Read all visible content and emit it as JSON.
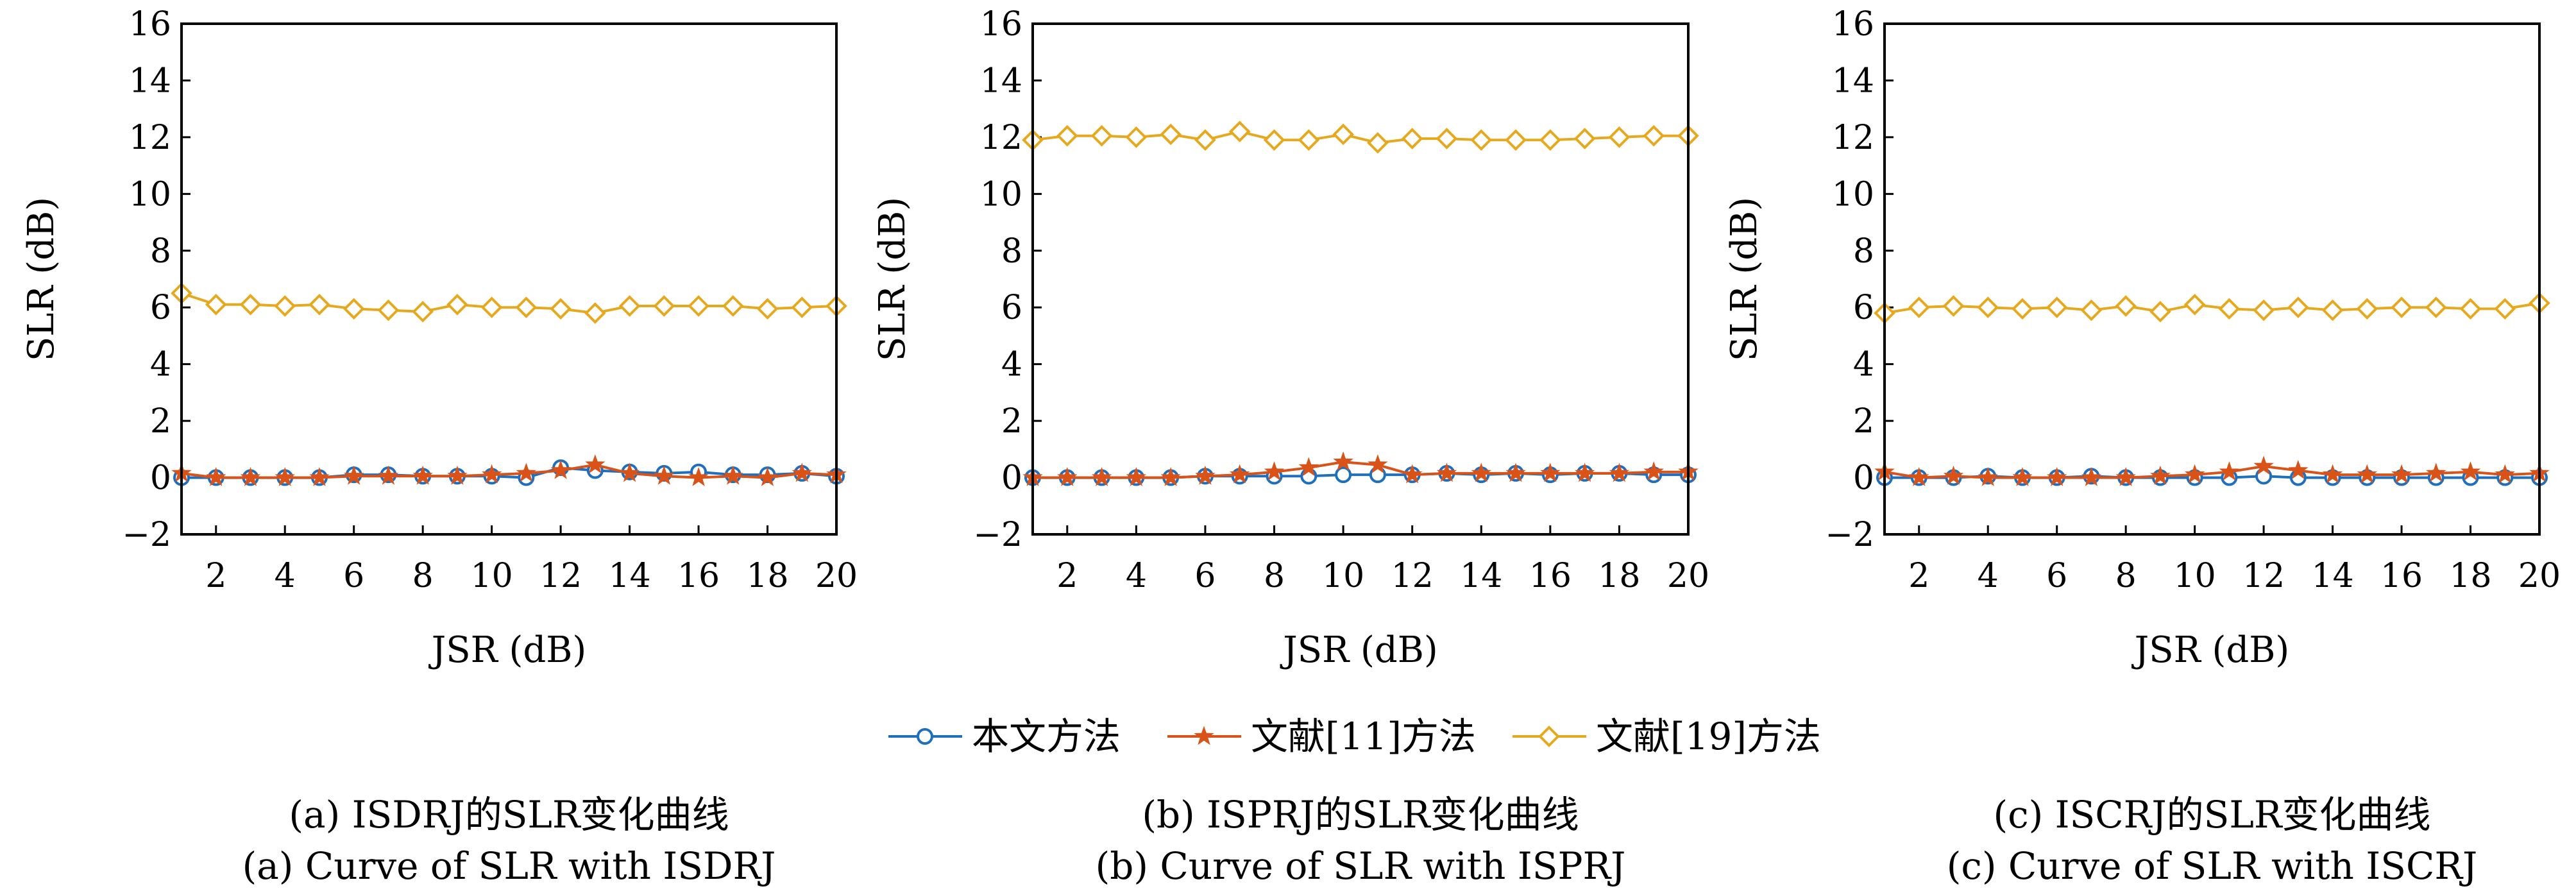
{
  "legend": [
    {
      "label": "本文方法",
      "color": "#1f6fbf",
      "marker": "circle"
    },
    {
      "label": "文献[11]方法",
      "color": "#d95319",
      "marker": "star"
    },
    {
      "label": "文献[19]方法",
      "color": "#e6a91e",
      "marker": "diamond"
    }
  ],
  "chart_data": [
    {
      "type": "line",
      "xlabel": "JSR (dB)",
      "ylabel": "SLR (dB)",
      "caption_cn": "(a) ISDRJ的SLR变化曲线",
      "caption_en": "(a) Curve of SLR with ISDRJ",
      "xlim": [
        1,
        20
      ],
      "ylim": [
        -2,
        16
      ],
      "xticks": [
        2,
        4,
        6,
        8,
        10,
        12,
        14,
        16,
        18,
        20
      ],
      "yticks": [
        -2,
        0,
        2,
        4,
        6,
        8,
        10,
        12,
        14,
        16
      ],
      "x": [
        1,
        2,
        3,
        4,
        5,
        6,
        7,
        8,
        9,
        10,
        11,
        12,
        13,
        14,
        15,
        16,
        17,
        18,
        19,
        20
      ],
      "series": [
        {
          "name": "本文方法",
          "values": [
            0.0,
            0.0,
            0.0,
            0.0,
            0.0,
            0.1,
            0.1,
            0.05,
            0.05,
            0.05,
            0.0,
            0.35,
            0.25,
            0.2,
            0.15,
            0.2,
            0.1,
            0.1,
            0.15,
            0.05
          ]
        },
        {
          "name": "文献[11]方法",
          "values": [
            0.15,
            0.0,
            0.0,
            0.0,
            0.0,
            0.05,
            0.05,
            0.05,
            0.05,
            0.1,
            0.15,
            0.25,
            0.45,
            0.15,
            0.05,
            0.0,
            0.05,
            0.0,
            0.15,
            0.1
          ]
        },
        {
          "name": "文献[19]方法",
          "values": [
            6.5,
            6.1,
            6.1,
            6.05,
            6.1,
            5.95,
            5.9,
            5.85,
            6.1,
            6.0,
            6.0,
            5.95,
            5.8,
            6.05,
            6.05,
            6.05,
            6.05,
            5.95,
            6.0,
            6.05
          ]
        }
      ]
    },
    {
      "type": "line",
      "xlabel": "JSR (dB)",
      "ylabel": "SLR (dB)",
      "caption_cn": "(b) ISPRJ的SLR变化曲线",
      "caption_en": "(b) Curve of SLR with ISPRJ",
      "xlim": [
        1,
        20
      ],
      "ylim": [
        -2,
        16
      ],
      "xticks": [
        2,
        4,
        6,
        8,
        10,
        12,
        14,
        16,
        18,
        20
      ],
      "yticks": [
        -2,
        0,
        2,
        4,
        6,
        8,
        10,
        12,
        14,
        16
      ],
      "x": [
        1,
        2,
        3,
        4,
        5,
        6,
        7,
        8,
        9,
        10,
        11,
        12,
        13,
        14,
        15,
        16,
        17,
        18,
        19,
        20
      ],
      "series": [
        {
          "name": "本文方法",
          "values": [
            0.0,
            0.0,
            0.0,
            0.0,
            0.0,
            0.05,
            0.05,
            0.05,
            0.05,
            0.1,
            0.1,
            0.1,
            0.15,
            0.1,
            0.15,
            0.1,
            0.15,
            0.15,
            0.1,
            0.1
          ]
        },
        {
          "name": "文献[11]方法",
          "values": [
            0.0,
            0.0,
            0.0,
            0.0,
            0.0,
            0.05,
            0.1,
            0.2,
            0.35,
            0.55,
            0.45,
            0.1,
            0.15,
            0.15,
            0.15,
            0.15,
            0.15,
            0.15,
            0.2,
            0.2
          ]
        },
        {
          "name": "文献[19]方法",
          "values": [
            11.9,
            12.05,
            12.05,
            12.0,
            12.1,
            11.9,
            12.2,
            11.9,
            11.9,
            12.1,
            11.8,
            11.95,
            11.95,
            11.9,
            11.9,
            11.9,
            11.95,
            12.0,
            12.05,
            12.05
          ]
        }
      ]
    },
    {
      "type": "line",
      "xlabel": "JSR (dB)",
      "ylabel": "SLR (dB)",
      "caption_cn": "(c) ISCRJ的SLR变化曲线",
      "caption_en": "(c) Curve of SLR with ISCRJ",
      "xlim": [
        1,
        20
      ],
      "ylim": [
        -2,
        16
      ],
      "xticks": [
        2,
        4,
        6,
        8,
        10,
        12,
        14,
        16,
        18,
        20
      ],
      "yticks": [
        -2,
        0,
        2,
        4,
        6,
        8,
        10,
        12,
        14,
        16
      ],
      "x": [
        1,
        2,
        3,
        4,
        5,
        6,
        7,
        8,
        9,
        10,
        11,
        12,
        13,
        14,
        15,
        16,
        17,
        18,
        19,
        20
      ],
      "series": [
        {
          "name": "本文方法",
          "values": [
            0.0,
            0.0,
            0.0,
            0.05,
            0.0,
            0.0,
            0.05,
            0.0,
            0.0,
            0.0,
            0.0,
            0.05,
            0.0,
            0.0,
            0.0,
            0.0,
            0.0,
            0.0,
            0.0,
            0.0
          ]
        },
        {
          "name": "文献[11]方法",
          "values": [
            0.2,
            0.0,
            0.05,
            0.0,
            0.0,
            0.0,
            0.0,
            0.0,
            0.05,
            0.1,
            0.2,
            0.4,
            0.25,
            0.1,
            0.1,
            0.1,
            0.15,
            0.2,
            0.1,
            0.15
          ]
        },
        {
          "name": "文献[19]方法",
          "values": [
            5.8,
            6.0,
            6.05,
            6.0,
            5.95,
            6.0,
            5.9,
            6.05,
            5.85,
            6.1,
            5.95,
            5.9,
            6.0,
            5.9,
            5.95,
            6.0,
            6.0,
            5.95,
            5.95,
            6.15
          ]
        }
      ]
    }
  ]
}
